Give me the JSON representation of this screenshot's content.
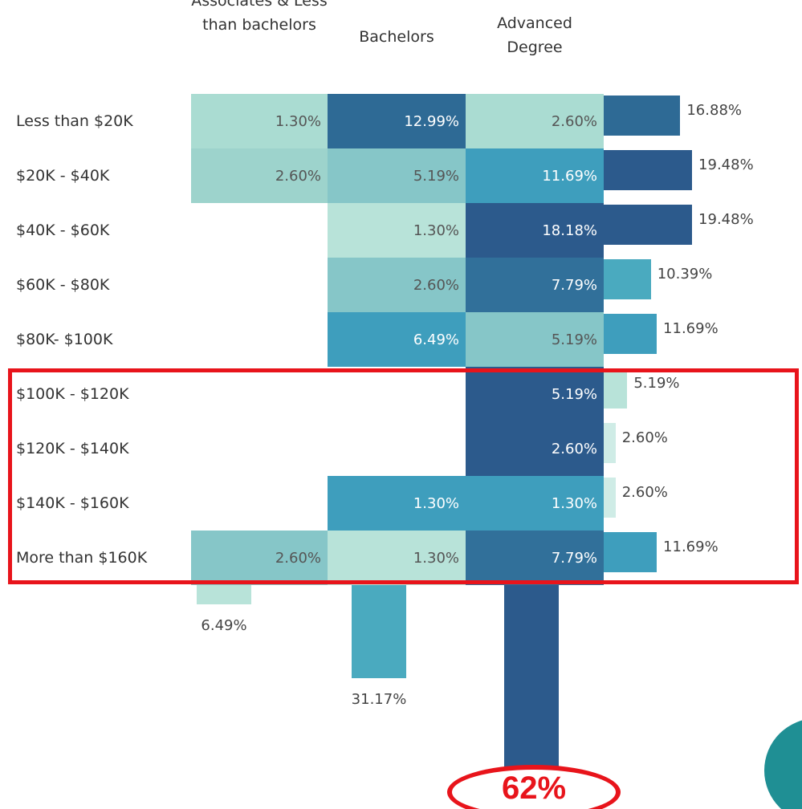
{
  "chart_data": {
    "type": "heatmap",
    "columns": [
      "Associates & Less than bachelors",
      "Bachelors",
      "Advanced Degree"
    ],
    "categories": [
      "Less than $20K",
      "$20K - $40K",
      "$40K - $60K",
      "$60K - $80K",
      "$80K- $100K",
      "$100K - $120K",
      "$120K - $140K",
      "$140K - $160K",
      "More than $160K"
    ],
    "values": [
      [
        1.3,
        12.99,
        2.6
      ],
      [
        2.6,
        5.19,
        11.69
      ],
      [
        null,
        1.3,
        18.18
      ],
      [
        null,
        2.6,
        7.79
      ],
      [
        null,
        6.49,
        5.19
      ],
      [
        null,
        null,
        5.19
      ],
      [
        null,
        null,
        2.6
      ],
      [
        null,
        1.3,
        1.3
      ],
      [
        2.6,
        1.3,
        7.79
      ]
    ],
    "value_labels": [
      [
        "1.30%",
        "12.99%",
        "2.60%"
      ],
      [
        "2.60%",
        "5.19%",
        "11.69%"
      ],
      [
        null,
        "1.30%",
        "18.18%"
      ],
      [
        null,
        "2.60%",
        "7.79%"
      ],
      [
        null,
        "6.49%",
        "5.19%"
      ],
      [
        null,
        null,
        "5.19%"
      ],
      [
        null,
        null,
        "2.60%"
      ],
      [
        null,
        "1.30%",
        "1.30%"
      ],
      [
        "2.60%",
        "1.30%",
        "7.79%"
      ]
    ],
    "colors": [
      [
        "#aadcd2",
        "#2e6a95",
        "#aadcd2"
      ],
      [
        "#9dd3cc",
        "#86c6c8",
        "#3e9ebd"
      ],
      [
        null,
        "#b8e3d9",
        "#2c5a8c"
      ],
      [
        null,
        "#86c6c8",
        "#31709a"
      ],
      [
        null,
        "#3e9ebd",
        "#86c6c8"
      ],
      [
        null,
        null,
        "#2c5a8c"
      ],
      [
        null,
        null,
        "#2c5a8c"
      ],
      [
        null,
        "#3e9ebd",
        "#3e9ebd"
      ],
      [
        "#86c6c8",
        "#b8e3d9",
        "#31709a"
      ]
    ],
    "row_totals": [
      16.88,
      19.48,
      19.48,
      10.39,
      11.69,
      5.19,
      2.6,
      2.6,
      11.69
    ],
    "row_total_labels": [
      "16.88%",
      "19.48%",
      "19.48%",
      "10.39%",
      "11.69%",
      "5.19%",
      "2.60%",
      "2.60%",
      "11.69%"
    ],
    "row_total_colors": [
      "#2e6a95",
      "#2c5a8c",
      "#2c5a8c",
      "#4aaabf",
      "#3e9ebd",
      "#b8e3d9",
      "#cfece6",
      "#cfece6",
      "#3e9ebd"
    ],
    "column_totals": [
      6.49,
      31.17,
      62.33
    ],
    "column_total_labels": [
      "6.49%",
      "31.17%",
      null
    ],
    "column_total_colors": [
      "#b8e3d9",
      "#4aaabf",
      "#2c5a8c"
    ],
    "annotation": "62%"
  }
}
